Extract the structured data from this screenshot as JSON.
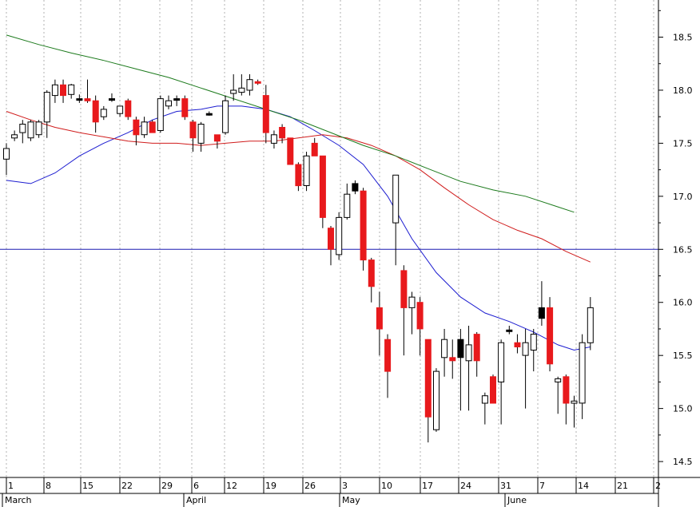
{
  "chart_data": {
    "type": "candlestick",
    "title": "",
    "xlabel": "",
    "ylabel": "",
    "ylim": [
      14.35,
      18.85
    ],
    "y_ticks": [
      14.5,
      15.0,
      15.5,
      16.0,
      16.5,
      17.0,
      17.5,
      18.0,
      18.5
    ],
    "y_tick_labels": [
      "14.5",
      "15.0",
      "15.5",
      "16.0",
      "16.5",
      "17.0",
      "17.5",
      "18.0",
      "18.5"
    ],
    "x_day_labels": [
      "1",
      "8",
      "15",
      "22",
      "29",
      "6",
      "12",
      "19",
      "26",
      "3",
      "10",
      "17",
      "24",
      "31",
      "7",
      "14",
      "21",
      "2"
    ],
    "month_labels": [
      "March",
      "April",
      "May",
      "June"
    ],
    "horizontal_line": 16.5,
    "grid": true,
    "colors": {
      "up": "#ffffff",
      "down": "#e8191c",
      "neutral": "#000000",
      "ma_short": "#1c1cd0",
      "ma_mid": "#d01c1c",
      "ma_long": "#1c7a1c",
      "hline": "#1c1cb0",
      "grid": "#b0b0b0"
    },
    "candles": [
      {
        "d": 0,
        "o": 17.35,
        "h": 17.5,
        "l": 17.2,
        "c": 17.45,
        "t": "up"
      },
      {
        "d": 1,
        "o": 17.55,
        "h": 17.62,
        "l": 17.52,
        "c": 17.58,
        "t": "up"
      },
      {
        "d": 2,
        "o": 17.6,
        "h": 17.72,
        "l": 17.5,
        "c": 17.68,
        "t": "up"
      },
      {
        "d": 3,
        "o": 17.55,
        "h": 17.72,
        "l": 17.52,
        "c": 17.7,
        "t": "up"
      },
      {
        "d": 4,
        "o": 17.58,
        "h": 17.72,
        "l": 17.55,
        "c": 17.7,
        "t": "up"
      },
      {
        "d": 5,
        "o": 17.7,
        "h": 18.0,
        "l": 17.55,
        "c": 17.98,
        "t": "up"
      },
      {
        "d": 6,
        "o": 17.95,
        "h": 18.1,
        "l": 17.88,
        "c": 18.05,
        "t": "up"
      },
      {
        "d": 7,
        "o": 18.05,
        "h": 18.1,
        "l": 17.88,
        "c": 17.95,
        "t": "down"
      },
      {
        "d": 8,
        "o": 17.96,
        "h": 18.06,
        "l": 17.92,
        "c": 18.05,
        "t": "up"
      },
      {
        "d": 9,
        "o": 17.92,
        "h": 17.96,
        "l": 17.88,
        "c": 17.92,
        "t": "neutral"
      },
      {
        "d": 10,
        "o": 17.9,
        "h": 18.1,
        "l": 17.88,
        "c": 17.92,
        "t": "down"
      },
      {
        "d": 11,
        "o": 17.9,
        "h": 17.95,
        "l": 17.6,
        "c": 17.7,
        "t": "down"
      },
      {
        "d": 12,
        "o": 17.75,
        "h": 17.85,
        "l": 17.72,
        "c": 17.82,
        "t": "up"
      },
      {
        "d": 13,
        "o": 17.92,
        "h": 17.97,
        "l": 17.89,
        "c": 17.92,
        "t": "neutral"
      },
      {
        "d": 14,
        "o": 17.78,
        "h": 17.85,
        "l": 17.75,
        "c": 17.85,
        "t": "up"
      },
      {
        "d": 15,
        "o": 17.9,
        "h": 17.92,
        "l": 17.72,
        "c": 17.75,
        "t": "down"
      },
      {
        "d": 16,
        "o": 17.72,
        "h": 17.75,
        "l": 17.48,
        "c": 17.58,
        "t": "down"
      },
      {
        "d": 17,
        "o": 17.58,
        "h": 17.75,
        "l": 17.55,
        "c": 17.7,
        "t": "up"
      },
      {
        "d": 18,
        "o": 17.7,
        "h": 17.72,
        "l": 17.6,
        "c": 17.6,
        "t": "down"
      },
      {
        "d": 19,
        "o": 17.62,
        "h": 17.95,
        "l": 17.6,
        "c": 17.92,
        "t": "up"
      },
      {
        "d": 20,
        "o": 17.85,
        "h": 17.95,
        "l": 17.82,
        "c": 17.9,
        "t": "up"
      },
      {
        "d": 21,
        "o": 17.92,
        "h": 17.95,
        "l": 17.85,
        "c": 17.92,
        "t": "neutral"
      },
      {
        "d": 22,
        "o": 17.92,
        "h": 17.95,
        "l": 17.72,
        "c": 17.75,
        "t": "down"
      },
      {
        "d": 23,
        "o": 17.7,
        "h": 17.72,
        "l": 17.42,
        "c": 17.55,
        "t": "down"
      },
      {
        "d": 24,
        "o": 17.5,
        "h": 17.7,
        "l": 17.42,
        "c": 17.68,
        "t": "up"
      },
      {
        "d": 25,
        "o": 17.78,
        "h": 17.8,
        "l": 17.76,
        "c": 17.78,
        "t": "neutral"
      },
      {
        "d": 26,
        "o": 17.58,
        "h": 17.58,
        "l": 17.45,
        "c": 17.52,
        "t": "down"
      },
      {
        "d": 27,
        "o": 17.6,
        "h": 17.95,
        "l": 17.58,
        "c": 17.9,
        "t": "up"
      },
      {
        "d": 28,
        "o": 17.97,
        "h": 18.15,
        "l": 17.9,
        "c": 18.0,
        "t": "up"
      },
      {
        "d": 29,
        "o": 17.98,
        "h": 18.15,
        "l": 17.95,
        "c": 18.02,
        "t": "up"
      },
      {
        "d": 30,
        "o": 18.0,
        "h": 18.15,
        "l": 17.95,
        "c": 18.1,
        "t": "up"
      },
      {
        "d": 31,
        "o": 18.08,
        "h": 18.1,
        "l": 18.05,
        "c": 18.07,
        "t": "down"
      },
      {
        "d": 32,
        "o": 17.95,
        "h": 18.05,
        "l": 17.5,
        "c": 17.6,
        "t": "down"
      },
      {
        "d": 33,
        "o": 17.5,
        "h": 17.62,
        "l": 17.45,
        "c": 17.58,
        "t": "up"
      },
      {
        "d": 34,
        "o": 17.65,
        "h": 17.68,
        "l": 17.5,
        "c": 17.55,
        "t": "down"
      },
      {
        "d": 35,
        "o": 17.55,
        "h": 17.55,
        "l": 17.3,
        "c": 17.3,
        "t": "down"
      },
      {
        "d": 36,
        "o": 17.3,
        "h": 17.32,
        "l": 17.05,
        "c": 17.1,
        "t": "down"
      },
      {
        "d": 37,
        "o": 17.1,
        "h": 17.42,
        "l": 17.05,
        "c": 17.38,
        "t": "up"
      },
      {
        "d": 38,
        "o": 17.5,
        "h": 17.55,
        "l": 17.38,
        "c": 17.38,
        "t": "down"
      },
      {
        "d": 39,
        "o": 17.38,
        "h": 17.38,
        "l": 16.7,
        "c": 16.8,
        "t": "down"
      },
      {
        "d": 40,
        "o": 16.7,
        "h": 16.72,
        "l": 16.35,
        "c": 16.5,
        "t": "down"
      },
      {
        "d": 41,
        "o": 16.45,
        "h": 16.85,
        "l": 16.4,
        "c": 16.8,
        "t": "up"
      },
      {
        "d": 42,
        "o": 16.8,
        "h": 17.12,
        "l": 16.78,
        "c": 17.02,
        "t": "up"
      },
      {
        "d": 43,
        "o": 17.05,
        "h": 17.15,
        "l": 17.02,
        "c": 17.12,
        "t": "neutral"
      },
      {
        "d": 44,
        "o": 17.05,
        "h": 17.08,
        "l": 16.3,
        "c": 16.4,
        "t": "down"
      },
      {
        "d": 45,
        "o": 16.4,
        "h": 16.42,
        "l": 16.0,
        "c": 16.15,
        "t": "down"
      },
      {
        "d": 46,
        "o": 15.95,
        "h": 16.1,
        "l": 15.5,
        "c": 15.75,
        "t": "down"
      },
      {
        "d": 47,
        "o": 15.65,
        "h": 15.7,
        "l": 15.1,
        "c": 15.35,
        "t": "down"
      },
      {
        "d": 48,
        "o": 16.75,
        "h": 17.2,
        "l": 16.35,
        "c": 17.2,
        "t": "up"
      },
      {
        "d": 49,
        "o": 16.3,
        "h": 16.35,
        "l": 15.5,
        "c": 15.95,
        "t": "down"
      },
      {
        "d": 50,
        "o": 15.95,
        "h": 16.1,
        "l": 15.7,
        "c": 16.05,
        "t": "up"
      },
      {
        "d": 51,
        "o": 16.0,
        "h": 16.05,
        "l": 15.5,
        "c": 15.75,
        "t": "down"
      },
      {
        "d": 52,
        "o": 15.65,
        "h": 15.65,
        "l": 14.68,
        "c": 14.92,
        "t": "down"
      },
      {
        "d": 53,
        "o": 14.8,
        "h": 15.38,
        "l": 14.78,
        "c": 15.35,
        "t": "up"
      },
      {
        "d": 54,
        "o": 15.48,
        "h": 15.75,
        "l": 15.3,
        "c": 15.65,
        "t": "up"
      },
      {
        "d": 55,
        "o": 15.48,
        "h": 15.65,
        "l": 15.28,
        "c": 15.45,
        "t": "down"
      },
      {
        "d": 56,
        "o": 15.65,
        "h": 15.75,
        "l": 14.98,
        "c": 15.48,
        "t": "neutral"
      },
      {
        "d": 57,
        "o": 15.6,
        "h": 15.78,
        "l": 14.98,
        "c": 15.45,
        "t": "up"
      },
      {
        "d": 58,
        "o": 15.7,
        "h": 15.72,
        "l": 15.3,
        "c": 15.45,
        "t": "down"
      },
      {
        "d": 59,
        "o": 15.05,
        "h": 15.15,
        "l": 14.85,
        "c": 15.12,
        "t": "up"
      },
      {
        "d": 60,
        "o": 15.3,
        "h": 15.32,
        "l": 15.05,
        "c": 15.05,
        "t": "down"
      },
      {
        "d": 61,
        "o": 15.25,
        "h": 15.65,
        "l": 14.85,
        "c": 15.62,
        "t": "up"
      },
      {
        "d": 62,
        "o": 15.74,
        "h": 15.78,
        "l": 15.7,
        "c": 15.74,
        "t": "neutral"
      },
      {
        "d": 63,
        "o": 15.62,
        "h": 15.7,
        "l": 15.52,
        "c": 15.58,
        "t": "down"
      },
      {
        "d": 64,
        "o": 15.62,
        "h": 15.75,
        "l": 15.0,
        "c": 15.5,
        "t": "up"
      },
      {
        "d": 65,
        "o": 15.55,
        "h": 15.75,
        "l": 15.35,
        "c": 15.7,
        "t": "up"
      },
      {
        "d": 66,
        "o": 15.95,
        "h": 16.2,
        "l": 15.78,
        "c": 15.85,
        "t": "neutral"
      },
      {
        "d": 67,
        "o": 15.95,
        "h": 16.05,
        "l": 15.35,
        "c": 15.42,
        "t": "down"
      },
      {
        "d": 68,
        "o": 15.28,
        "h": 15.3,
        "l": 14.95,
        "c": 15.25,
        "t": "up"
      },
      {
        "d": 69,
        "o": 15.3,
        "h": 15.32,
        "l": 14.85,
        "c": 15.05,
        "t": "down"
      },
      {
        "d": 70,
        "o": 15.05,
        "h": 15.12,
        "l": 14.82,
        "c": 15.07,
        "t": "up"
      },
      {
        "d": 71,
        "o": 15.05,
        "h": 15.7,
        "l": 14.9,
        "c": 15.62,
        "t": "up"
      },
      {
        "d": 72,
        "o": 15.62,
        "h": 16.05,
        "l": 15.55,
        "c": 15.95,
        "t": "up"
      }
    ],
    "series": [
      {
        "key": "ma_short",
        "x": [
          0,
          3,
          6,
          9,
          12,
          15,
          18,
          21,
          24,
          26,
          29,
          32,
          35,
          38,
          41,
          44,
          47,
          50,
          53,
          56,
          59,
          62,
          65,
          68,
          70,
          72
        ],
        "values": [
          17.15,
          17.12,
          17.22,
          17.38,
          17.5,
          17.6,
          17.72,
          17.8,
          17.82,
          17.85,
          17.85,
          17.82,
          17.75,
          17.62,
          17.48,
          17.3,
          17.0,
          16.6,
          16.28,
          16.05,
          15.9,
          15.82,
          15.72,
          15.6,
          15.55,
          15.58
        ]
      },
      {
        "key": "ma_mid",
        "x": [
          0,
          3,
          6,
          9,
          12,
          15,
          18,
          21,
          24,
          27,
          30,
          33,
          36,
          39,
          42,
          45,
          48,
          51,
          54,
          57,
          60,
          63,
          66,
          69,
          72
        ],
        "values": [
          17.8,
          17.72,
          17.65,
          17.6,
          17.56,
          17.52,
          17.5,
          17.5,
          17.48,
          17.5,
          17.52,
          17.52,
          17.55,
          17.58,
          17.55,
          17.48,
          17.38,
          17.25,
          17.08,
          16.92,
          16.78,
          16.68,
          16.6,
          16.48,
          16.38
        ]
      },
      {
        "key": "ma_long",
        "x": [
          0,
          4,
          8,
          12,
          16,
          20,
          24,
          28,
          32,
          36,
          40,
          44,
          48,
          52,
          56,
          60,
          64,
          68,
          70
        ],
        "values": [
          18.52,
          18.43,
          18.35,
          18.28,
          18.2,
          18.12,
          18.02,
          17.92,
          17.82,
          17.72,
          17.6,
          17.48,
          17.38,
          17.26,
          17.14,
          17.06,
          17.0,
          16.9,
          16.85
        ]
      }
    ]
  }
}
